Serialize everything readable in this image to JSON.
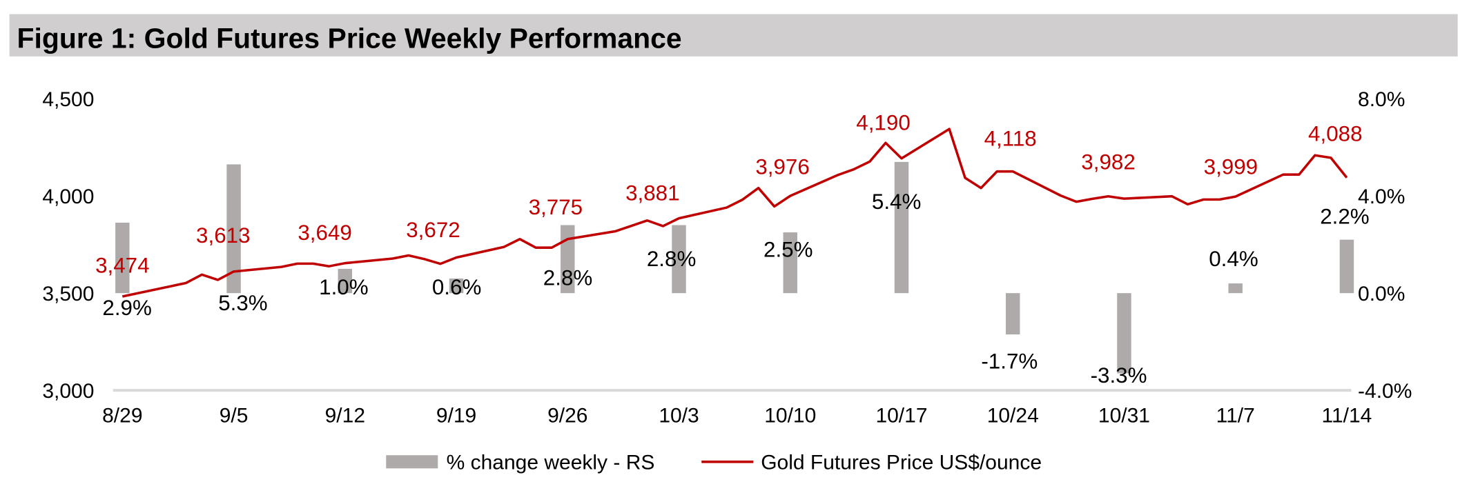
{
  "title": "Figure 1: Gold Futures Price Weekly Performance",
  "colors": {
    "line": "#c00000",
    "bars": "#aeaaaa",
    "title_bar": "#d0cece",
    "axis": "#d9d9d9"
  },
  "chart_data": {
    "type": "bar+line",
    "title": "Figure 1: Gold Futures Price Weekly Performance",
    "x_ticks": [
      "8/29",
      "9/5",
      "9/12",
      "9/19",
      "9/26",
      "10/3",
      "10/10",
      "10/17",
      "10/24",
      "10/31",
      "11/7",
      "11/14"
    ],
    "y_left": {
      "range": [
        3000,
        4500
      ],
      "ticks": [
        "3,000",
        "3,500",
        "4,000",
        "4,500"
      ],
      "tick_values": [
        3000,
        3500,
        4000,
        4500
      ]
    },
    "y_right": {
      "range": [
        -4.0,
        8.0
      ],
      "ticks": [
        "-4.0%",
        "0.0%",
        "4.0%",
        "8.0%"
      ],
      "tick_values": [
        -4,
        0,
        4,
        8
      ]
    },
    "grid": false,
    "legend_placement": "bottom",
    "series": [
      {
        "name": "% change weekly - RS",
        "type": "bar",
        "axis": "right",
        "categories": [
          "8/29",
          "9/5",
          "9/12",
          "9/19",
          "9/26",
          "10/3",
          "10/10",
          "10/17",
          "10/24",
          "10/31",
          "11/7",
          "11/14"
        ],
        "values": [
          2.9,
          5.3,
          1.0,
          0.6,
          2.8,
          2.8,
          2.5,
          5.4,
          -1.7,
          -3.3,
          0.4,
          2.2
        ],
        "labels": [
          "2.9%",
          "5.3%",
          "1.0%",
          "0.6%",
          "2.8%",
          "2.8%",
          "2.5%",
          "5.4%",
          "-1.7%",
          "-3.3%",
          "0.4%",
          "2.2%"
        ]
      },
      {
        "name": "Gold Futures Price US$/ounce",
        "type": "line",
        "axis": "left",
        "x": [
          "8/29",
          "9/2",
          "9/3",
          "9/4",
          "9/5",
          "9/8",
          "9/9",
          "9/10",
          "9/11",
          "9/12",
          "9/15",
          "9/16",
          "9/17",
          "9/18",
          "9/19",
          "9/22",
          "9/23",
          "9/24",
          "9/25",
          "9/26",
          "9/29",
          "9/30",
          "10/1",
          "10/2",
          "10/3",
          "10/6",
          "10/7",
          "10/8",
          "10/9",
          "10/10",
          "10/13",
          "10/14",
          "10/15",
          "10/16",
          "10/17",
          "10/20",
          "10/21",
          "10/22",
          "10/23",
          "10/24",
          "10/27",
          "10/28",
          "10/29",
          "10/30",
          "10/31",
          "11/3",
          "11/4",
          "11/5",
          "11/6",
          "11/7",
          "11/10",
          "11/11",
          "11/12",
          "11/13",
          "11/14"
        ],
        "y": [
          3483,
          3552,
          3595,
          3568,
          3611,
          3635,
          3652,
          3652,
          3638,
          3654,
          3678,
          3694,
          3675,
          3651,
          3683,
          3738,
          3778,
          3734,
          3734,
          3778,
          3818,
          3846,
          3874,
          3845,
          3885,
          3940,
          3981,
          4041,
          3946,
          4000,
          4108,
          4137,
          4177,
          4273,
          4193,
          4344,
          4093,
          4041,
          4126,
          4126,
          4002,
          3970,
          3985,
          3998,
          3986,
          3998,
          3957,
          3982,
          3982,
          3997,
          4110,
          4110,
          4209,
          4196,
          4094
        ],
        "weekly_labels": [
          "3,474",
          "3,613",
          "3,649",
          "3,672",
          "3,775",
          "3,881",
          "3,976",
          "4,190",
          "4,118",
          "3,982",
          "3,999",
          "4,088"
        ]
      }
    ]
  }
}
